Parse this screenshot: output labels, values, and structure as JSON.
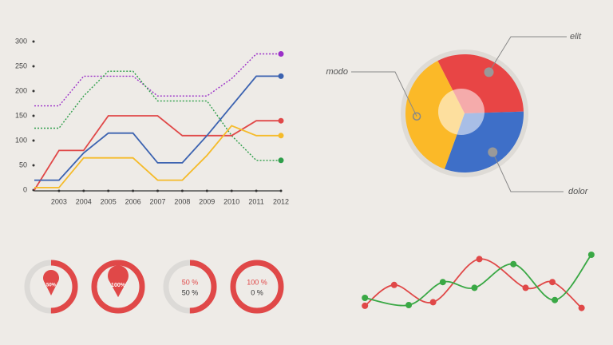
{
  "chart_data": [
    {
      "type": "line",
      "categories": [
        null,
        "2003",
        "2004",
        "2005",
        "2006",
        "2007",
        "2008",
        "2009",
        "2010",
        "2011",
        "2012"
      ],
      "ylim": [
        0,
        300
      ],
      "yticks": [
        0,
        50,
        100,
        150,
        200,
        250,
        300
      ],
      "series": [
        {
          "color": "#9b30c8",
          "dashed": true,
          "values": [
            170,
            170,
            230,
            230,
            230,
            190,
            190,
            190,
            225,
            275,
            275
          ]
        },
        {
          "color": "#2e9e4a",
          "dashed": true,
          "values": [
            125,
            125,
            190,
            240,
            240,
            180,
            180,
            180,
            110,
            60,
            60
          ]
        },
        {
          "color": "#e04848",
          "dashed": false,
          "values": [
            0,
            80,
            80,
            150,
            150,
            150,
            110,
            110,
            110,
            140,
            140
          ]
        },
        {
          "color": "#3b62b0",
          "dashed": false,
          "values": [
            20,
            20,
            75,
            115,
            115,
            55,
            55,
            110,
            170,
            230,
            230
          ]
        },
        {
          "color": "#f5bb2a",
          "dashed": false,
          "values": [
            5,
            5,
            65,
            65,
            65,
            20,
            20,
            70,
            130,
            110,
            110
          ]
        }
      ]
    },
    {
      "type": "pie",
      "categories": [
        "elit",
        "dolor",
        "modo"
      ],
      "values": [
        32,
        31,
        37
      ],
      "colors": [
        "#e84545",
        "#3e6fc8",
        "#fbb928"
      ]
    },
    {
      "type": "gauge",
      "ylim": [
        0,
        100
      ],
      "values": [
        50,
        100,
        50,
        100
      ],
      "value_labels": [
        "50%",
        "100%",
        "50 %",
        "100 %"
      ],
      "remainder_labels": [
        null,
        null,
        "50 %",
        "0 %"
      ],
      "color": "#e04848",
      "track_color": "#dcdad7"
    },
    {
      "type": "curve",
      "xlim": [
        0,
        100
      ],
      "ylim": [
        0,
        100
      ],
      "series": [
        {
          "color": "#e04848",
          "x": [
            4,
            16,
            32,
            51,
            70,
            81,
            93
          ],
          "values": [
            19,
            48,
            24,
            84,
            44,
            52,
            16
          ]
        },
        {
          "color": "#3aa845",
          "x": [
            4,
            22,
            36,
            49,
            65,
            82,
            97
          ],
          "values": [
            30,
            20,
            52,
            44,
            77,
            27,
            90
          ]
        }
      ]
    }
  ]
}
